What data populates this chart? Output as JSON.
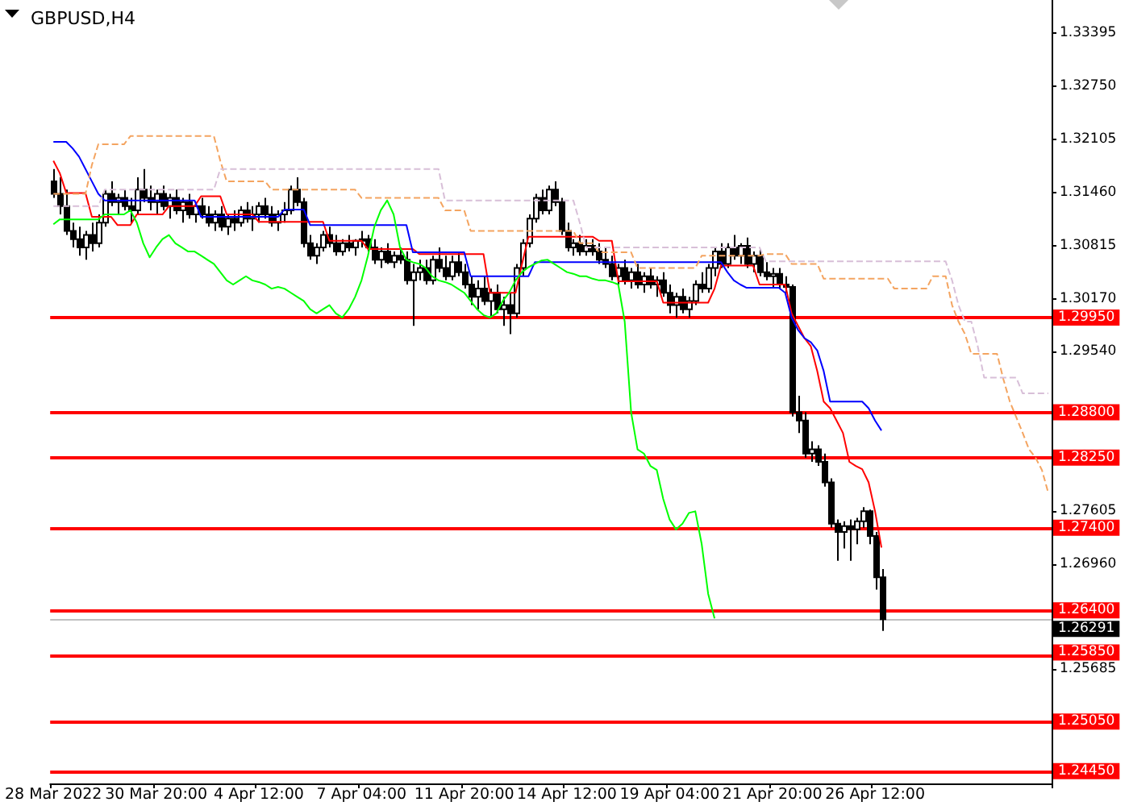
{
  "chart_data": {
    "type": "candlestick",
    "title": "GBPUSD,H4",
    "color": "#000000",
    "marker": "none",
    "categories": [
      "28 Mar 2022",
      null,
      null,
      null,
      null,
      null,
      null,
      null,
      null,
      null,
      null,
      null,
      null,
      null,
      null,
      null,
      "30 Mar 20:00",
      null,
      null,
      null,
      null,
      null,
      null,
      null,
      null,
      null,
      null,
      null,
      null,
      null,
      null,
      null,
      "4 Apr 12:00",
      null,
      null,
      null,
      null,
      null,
      null,
      null,
      null,
      null,
      null,
      null,
      null,
      null,
      null,
      null,
      "7 Apr 04:00",
      null,
      null,
      null,
      null,
      null,
      null,
      null,
      null,
      null,
      null,
      null,
      null,
      null,
      null,
      null,
      "11 Apr 20:00",
      null,
      null,
      null,
      null,
      null,
      null,
      null,
      null,
      null,
      null,
      null,
      null,
      null,
      null,
      null,
      "14 Apr 12:00",
      null,
      null,
      null,
      null,
      null,
      null,
      null,
      null,
      null,
      null,
      null,
      null,
      null,
      null,
      null,
      "19 Apr 04:00",
      null,
      null,
      null,
      null,
      null,
      null,
      null,
      null,
      null,
      null,
      null,
      null,
      null,
      null,
      null,
      "21 Apr 20:00",
      null,
      null,
      null,
      null,
      null,
      null,
      null,
      null,
      null,
      null,
      null,
      null,
      null,
      null,
      null,
      "26 Apr 12:00",
      null,
      null,
      null,
      null,
      null,
      null,
      null,
      null,
      null,
      null,
      null,
      null,
      null,
      null,
      null,
      null,
      null,
      null,
      null,
      null,
      null,
      null,
      null,
      null,
      null,
      null,
      null
    ],
    "ohlc": [
      [
        1.316,
        1.3175,
        1.314,
        1.3145
      ],
      [
        1.3145,
        1.3165,
        1.312,
        1.313
      ],
      [
        1.313,
        1.315,
        1.3095,
        1.31
      ],
      [
        1.31,
        1.311,
        1.308,
        1.309
      ],
      [
        1.309,
        1.3105,
        1.307,
        1.308
      ],
      [
        1.308,
        1.31,
        1.3065,
        1.3095
      ],
      [
        1.3095,
        1.311,
        1.3075,
        1.3085
      ],
      [
        1.3085,
        1.312,
        1.308,
        1.311
      ],
      [
        1.311,
        1.315,
        1.3105,
        1.3145
      ],
      [
        1.3145,
        1.316,
        1.313,
        1.3135
      ],
      [
        1.3135,
        1.3145,
        1.312,
        1.314
      ],
      [
        1.314,
        1.315,
        1.3125,
        1.313
      ],
      [
        1.313,
        1.314,
        1.311,
        1.3125
      ],
      [
        1.3125,
        1.3165,
        1.312,
        1.315
      ],
      [
        1.315,
        1.3175,
        1.3135,
        1.314
      ],
      [
        1.314,
        1.3155,
        1.3125,
        1.3135
      ],
      [
        1.3135,
        1.315,
        1.312,
        1.3145
      ],
      [
        1.3145,
        1.3155,
        1.3125,
        1.313
      ],
      [
        1.313,
        1.3145,
        1.3115,
        1.314
      ],
      [
        1.314,
        1.315,
        1.312,
        1.3125
      ],
      [
        1.3125,
        1.314,
        1.311,
        1.3135
      ],
      [
        1.3135,
        1.3145,
        1.3115,
        1.312
      ],
      [
        1.312,
        1.3135,
        1.311,
        1.313
      ],
      [
        1.313,
        1.314,
        1.3115,
        1.312
      ],
      [
        1.312,
        1.313,
        1.3105,
        1.311
      ],
      [
        1.311,
        1.3125,
        1.31,
        1.312
      ],
      [
        1.312,
        1.313,
        1.31,
        1.3105
      ],
      [
        1.3105,
        1.312,
        1.3095,
        1.3115
      ],
      [
        1.3115,
        1.3125,
        1.31,
        1.311
      ],
      [
        1.311,
        1.313,
        1.3105,
        1.3125
      ],
      [
        1.3125,
        1.3135,
        1.311,
        1.3115
      ],
      [
        1.3115,
        1.313,
        1.31,
        1.312
      ],
      [
        1.312,
        1.3135,
        1.311,
        1.313
      ],
      [
        1.313,
        1.314,
        1.3115,
        1.312
      ],
      [
        1.312,
        1.313,
        1.3105,
        1.311
      ],
      [
        1.311,
        1.3125,
        1.31,
        1.312
      ],
      [
        1.312,
        1.3135,
        1.311,
        1.3125
      ],
      [
        1.3125,
        1.3155,
        1.312,
        1.315
      ],
      [
        1.315,
        1.3165,
        1.313,
        1.3135
      ],
      [
        1.3135,
        1.314,
        1.308,
        1.3085
      ],
      [
        1.3085,
        1.3095,
        1.3065,
        1.307
      ],
      [
        1.307,
        1.3085,
        1.306,
        1.308
      ],
      [
        1.308,
        1.31,
        1.3075,
        1.3095
      ],
      [
        1.3095,
        1.3105,
        1.308,
        1.3085
      ],
      [
        1.3085,
        1.3095,
        1.307,
        1.3075
      ],
      [
        1.3075,
        1.309,
        1.307,
        1.3085
      ],
      [
        1.3085,
        1.3095,
        1.3075,
        1.308
      ],
      [
        1.308,
        1.309,
        1.307,
        1.3088
      ],
      [
        1.3088,
        1.31,
        1.308,
        1.309
      ],
      [
        1.309,
        1.3095,
        1.3075,
        1.308
      ],
      [
        1.308,
        1.309,
        1.306,
        1.3065
      ],
      [
        1.3065,
        1.308,
        1.3055,
        1.3075
      ],
      [
        1.3075,
        1.3085,
        1.306,
        1.3062
      ],
      [
        1.3062,
        1.3075,
        1.3055,
        1.307
      ],
      [
        1.307,
        1.308,
        1.306,
        1.3065
      ],
      [
        1.3065,
        1.3075,
        1.3035,
        1.304
      ],
      [
        1.304,
        1.306,
        1.2985,
        1.305
      ],
      [
        1.305,
        1.3065,
        1.304,
        1.3055
      ],
      [
        1.3055,
        1.3065,
        1.3035,
        1.304
      ],
      [
        1.304,
        1.307,
        1.3035,
        1.3065
      ],
      [
        1.3065,
        1.308,
        1.305,
        1.3055
      ],
      [
        1.3055,
        1.307,
        1.304,
        1.3045
      ],
      [
        1.3045,
        1.307,
        1.304,
        1.3062
      ],
      [
        1.3062,
        1.3075,
        1.3045,
        1.305
      ],
      [
        1.305,
        1.306,
        1.303,
        1.3035
      ],
      [
        1.3035,
        1.3045,
        1.301,
        1.302
      ],
      [
        1.302,
        1.304,
        1.3005,
        1.303
      ],
      [
        1.303,
        1.3045,
        1.301,
        1.3015
      ],
      [
        1.3015,
        1.303,
        1.2995,
        1.3025
      ],
      [
        1.3025,
        1.3035,
        1.3,
        1.3005
      ],
      [
        1.3005,
        1.302,
        1.2985,
        1.301
      ],
      [
        1.301,
        1.3025,
        1.2975,
        1.3
      ],
      [
        1.3,
        1.306,
        1.2995,
        1.3055
      ],
      [
        1.3055,
        1.309,
        1.3045,
        1.3085
      ],
      [
        1.3085,
        1.312,
        1.308,
        1.3115
      ],
      [
        1.3115,
        1.3145,
        1.311,
        1.314
      ],
      [
        1.314,
        1.315,
        1.312,
        1.3125
      ],
      [
        1.3125,
        1.3155,
        1.312,
        1.315
      ],
      [
        1.315,
        1.316,
        1.313,
        1.3135
      ],
      [
        1.3135,
        1.314,
        1.3095,
        1.31
      ],
      [
        1.31,
        1.311,
        1.3075,
        1.308
      ],
      [
        1.308,
        1.309,
        1.307,
        1.3085
      ],
      [
        1.3085,
        1.3095,
        1.307,
        1.3075
      ],
      [
        1.3075,
        1.309,
        1.307,
        1.3082
      ],
      [
        1.3082,
        1.309,
        1.307,
        1.3075
      ],
      [
        1.3075,
        1.3085,
        1.306,
        1.3065
      ],
      [
        1.3065,
        1.308,
        1.3055,
        1.306
      ],
      [
        1.306,
        1.307,
        1.304,
        1.3045
      ],
      [
        1.3045,
        1.306,
        1.3035,
        1.3055
      ],
      [
        1.3055,
        1.3065,
        1.3035,
        1.304
      ],
      [
        1.304,
        1.3055,
        1.303,
        1.305
      ],
      [
        1.305,
        1.306,
        1.303,
        1.3035
      ],
      [
        1.3035,
        1.305,
        1.3025,
        1.3045
      ],
      [
        1.3045,
        1.3055,
        1.303,
        1.3035
      ],
      [
        1.3035,
        1.3045,
        1.302,
        1.304
      ],
      [
        1.304,
        1.305,
        1.302,
        1.3025
      ],
      [
        1.3025,
        1.3035,
        1.3,
        1.301
      ],
      [
        1.301,
        1.3025,
        1.2995,
        1.302
      ],
      [
        1.302,
        1.303,
        1.3,
        1.3005
      ],
      [
        1.3005,
        1.302,
        1.2995,
        1.3015
      ],
      [
        1.3015,
        1.304,
        1.301,
        1.3035
      ],
      [
        1.3035,
        1.305,
        1.3025,
        1.303
      ],
      [
        1.303,
        1.306,
        1.3025,
        1.3055
      ],
      [
        1.3055,
        1.308,
        1.3045,
        1.3075
      ],
      [
        1.3075,
        1.3085,
        1.3055,
        1.306
      ],
      [
        1.306,
        1.3085,
        1.3055,
        1.308
      ],
      [
        1.308,
        1.3095,
        1.3065,
        1.307
      ],
      [
        1.307,
        1.3085,
        1.306,
        1.3082
      ],
      [
        1.3082,
        1.3092,
        1.3055,
        1.306
      ],
      [
        1.306,
        1.3075,
        1.305,
        1.307
      ],
      [
        1.307,
        1.3078,
        1.3045,
        1.305
      ],
      [
        1.305,
        1.3062,
        1.304,
        1.3045
      ],
      [
        1.3045,
        1.3055,
        1.303,
        1.3048
      ],
      [
        1.3048,
        1.3055,
        1.303,
        1.3035
      ],
      [
        1.3035,
        1.3045,
        1.3025,
        1.3032
      ],
      [
        1.3032,
        1.3035,
        1.2875,
        1.288
      ],
      [
        1.288,
        1.29,
        1.2855,
        1.287
      ],
      [
        1.287,
        1.288,
        1.2825,
        1.283
      ],
      [
        1.283,
        1.2845,
        1.282,
        1.2835
      ],
      [
        1.2835,
        1.284,
        1.2815,
        1.282
      ],
      [
        1.282,
        1.283,
        1.279,
        1.2795
      ],
      [
        1.2795,
        1.28,
        1.274,
        1.2745
      ],
      [
        1.2745,
        1.275,
        1.27,
        1.2735
      ],
      [
        1.2735,
        1.2748,
        1.2715,
        1.2742
      ],
      [
        1.2742,
        1.275,
        1.27,
        1.2738
      ],
      [
        1.2738,
        1.2752,
        1.272,
        1.2748
      ],
      [
        1.2748,
        1.2765,
        1.274,
        1.276
      ],
      [
        1.276,
        1.2762,
        1.272,
        1.273
      ],
      [
        1.273,
        1.2735,
        1.2665,
        1.268
      ],
      [
        1.268,
        1.269,
        1.2615,
        1.26291
      ],
      null,
      null,
      null,
      null,
      null,
      null,
      null,
      null,
      null,
      null,
      null,
      null,
      null,
      null,
      null,
      null,
      null,
      null,
      null,
      null,
      null,
      null,
      null,
      null,
      null,
      null
    ],
    "series": [
      {
        "type": "line",
        "color": "#ff0000",
        "line_style": "solid",
        "values": [
          1.3185,
          1.317,
          1.3146,
          1.3146,
          1.3146,
          1.3146,
          1.3117,
          1.3117,
          1.3117,
          1.3117,
          1.3107,
          1.3107,
          1.3107,
          1.312,
          1.312,
          1.312,
          1.312,
          1.312,
          1.313,
          1.313,
          1.313,
          1.313,
          1.313,
          1.3142,
          1.3142,
          1.3142,
          1.3142,
          1.312,
          1.312,
          1.312,
          1.312,
          1.312,
          1.3111,
          1.3111,
          1.3111,
          1.3111,
          1.3111,
          1.3111,
          1.3111,
          1.3111,
          1.3111,
          1.3111,
          1.3111,
          1.3088,
          1.3088,
          1.3088,
          1.3088,
          1.3088,
          1.3088,
          1.3078,
          1.3078,
          1.3078,
          1.3078,
          1.3078,
          1.3078,
          1.3078,
          1.3078,
          1.3072,
          1.3072,
          1.3072,
          1.3072,
          1.3072,
          1.3072,
          1.3072,
          1.3072,
          1.3072,
          1.3072,
          1.3072,
          1.3025,
          1.3025,
          1.3025,
          1.3025,
          1.3025,
          1.306,
          1.3093,
          1.3093,
          1.3093,
          1.3093,
          1.3093,
          1.3093,
          1.3093,
          1.3093,
          1.3093,
          1.3093,
          1.3093,
          1.3088,
          1.3088,
          1.3088,
          1.3039,
          1.3039,
          1.3039,
          1.3039,
          1.3039,
          1.3039,
          1.3039,
          1.3013,
          1.3013,
          1.3013,
          1.3013,
          1.3013,
          1.3013,
          1.3013,
          1.3013,
          1.303,
          1.3058,
          1.3058,
          1.3058,
          1.3058,
          1.3058,
          1.3058,
          1.3035,
          1.3035,
          1.3035,
          1.3035,
          1.3035,
          1.3,
          1.2985,
          1.297,
          1.296,
          1.293,
          1.2893,
          1.2885,
          1.287,
          1.2855,
          1.282,
          1.2815,
          1.2811,
          1.2795,
          1.276,
          1.2716,
          null,
          null,
          null,
          null,
          null,
          null,
          null,
          null,
          null,
          null,
          null,
          null,
          null,
          null,
          null,
          null,
          null,
          null,
          null,
          null,
          null,
          null,
          null,
          null,
          null,
          null
        ]
      },
      {
        "type": "line",
        "color": "#0000ff",
        "line_style": "solid",
        "values": [
          1.3208,
          1.3208,
          1.3208,
          1.32,
          1.319,
          1.3175,
          1.316,
          1.3145,
          1.3137,
          1.3137,
          1.3137,
          1.3137,
          1.3137,
          1.3137,
          1.3137,
          1.3137,
          1.3137,
          1.3137,
          1.3137,
          1.3137,
          1.3137,
          1.3137,
          1.3137,
          1.3117,
          1.3117,
          1.3117,
          1.3117,
          1.3117,
          1.3117,
          1.3117,
          1.3117,
          1.3117,
          1.3117,
          1.3117,
          1.3117,
          1.3117,
          1.3126,
          1.3126,
          1.3126,
          1.3126,
          1.3107,
          1.3107,
          1.3107,
          1.3107,
          1.3107,
          1.3107,
          1.3107,
          1.3107,
          1.3107,
          1.3107,
          1.3107,
          1.3107,
          1.3107,
          1.3107,
          1.3107,
          1.3107,
          1.3074,
          1.3074,
          1.3074,
          1.3074,
          1.3074,
          1.3074,
          1.3074,
          1.3074,
          1.3074,
          1.3045,
          1.3045,
          1.3045,
          1.3045,
          1.3045,
          1.3045,
          1.3045,
          1.3045,
          1.3045,
          1.3045,
          1.3062,
          1.3062,
          1.3062,
          1.3062,
          1.3062,
          1.3062,
          1.3062,
          1.3062,
          1.3062,
          1.3062,
          1.3062,
          1.3062,
          1.3062,
          1.3062,
          1.3062,
          1.3062,
          1.3062,
          1.3062,
          1.3062,
          1.3062,
          1.3062,
          1.3062,
          1.3062,
          1.3062,
          1.3062,
          1.3062,
          1.3062,
          1.3062,
          1.3062,
          1.3062,
          1.305,
          1.304,
          1.3035,
          1.3031,
          1.3031,
          1.3031,
          1.3031,
          1.3031,
          1.3031,
          1.3025,
          1.2995,
          1.298,
          1.297,
          1.2965,
          1.2955,
          1.293,
          1.2893,
          1.2893,
          1.2893,
          1.2893,
          1.2893,
          1.2893,
          1.2885,
          1.287,
          1.2858,
          null,
          null,
          null,
          null,
          null,
          null,
          null,
          null,
          null,
          null,
          null,
          null,
          null,
          null,
          null,
          null,
          null,
          null,
          null,
          null,
          null,
          null,
          null,
          null,
          null,
          null
        ]
      },
      {
        "type": "line",
        "color": "#00ff00",
        "line_style": "solid",
        "values": [
          1.3108,
          1.3114,
          1.3114,
          1.3114,
          1.3114,
          1.3114,
          1.3114,
          1.3114,
          1.312,
          1.312,
          1.312,
          1.312,
          1.3125,
          1.311,
          1.3085,
          1.3068,
          1.308,
          1.309,
          1.3095,
          1.3085,
          1.308,
          1.3075,
          1.3075,
          1.307,
          1.3065,
          1.306,
          1.305,
          1.304,
          1.3035,
          1.304,
          1.3045,
          1.304,
          1.3038,
          1.3035,
          1.303,
          1.3032,
          1.303,
          1.3025,
          1.302,
          1.3015,
          1.3005,
          1.3,
          1.3005,
          1.301,
          1.3,
          1.2995,
          1.3005,
          1.302,
          1.304,
          1.307,
          1.3105,
          1.3125,
          1.3137,
          1.312,
          1.308,
          1.3065,
          1.3062,
          1.306,
          1.3055,
          1.3045,
          1.304,
          1.3038,
          1.3035,
          1.303,
          1.3025,
          1.3015,
          1.3005,
          1.2998,
          1.2995,
          1.3,
          1.3015,
          1.3025,
          1.304,
          1.305,
          1.3056,
          1.306,
          1.3064,
          1.3065,
          1.306,
          1.3055,
          1.305,
          1.3048,
          1.3045,
          1.3045,
          1.3042,
          1.304,
          1.304,
          1.3038,
          1.3035,
          1.299,
          1.288,
          1.2835,
          1.283,
          1.2815,
          1.281,
          1.2775,
          1.275,
          1.2738,
          1.2745,
          1.2758,
          1.276,
          1.272,
          1.266,
          1.263,
          null,
          null,
          null,
          null,
          null,
          null,
          null,
          null,
          null,
          null,
          null,
          null,
          null,
          null,
          null,
          null,
          null,
          null,
          null,
          null,
          null,
          null,
          null,
          null,
          null,
          null,
          null,
          null,
          null,
          null,
          null,
          null,
          null,
          null,
          null,
          null,
          null,
          null,
          null,
          null,
          null,
          null,
          null,
          null,
          null,
          null,
          null,
          null,
          null,
          null,
          null,
          null
        ]
      },
      {
        "type": "line",
        "color": "#f4a460",
        "line_style": "dashed",
        "values": [
          1.3145,
          1.3145,
          1.3145,
          1.3145,
          1.3145,
          1.3145,
          1.318,
          1.3205,
          1.3205,
          1.3205,
          1.3205,
          1.3205,
          1.3215,
          1.3215,
          1.3215,
          1.3215,
          1.3215,
          1.3215,
          1.3215,
          1.3215,
          1.3215,
          1.3215,
          1.3215,
          1.3215,
          1.3215,
          1.3215,
          1.3185,
          1.316,
          1.316,
          1.316,
          1.316,
          1.316,
          1.316,
          1.316,
          1.315,
          1.315,
          1.315,
          1.315,
          1.315,
          1.315,
          1.315,
          1.315,
          1.315,
          1.315,
          1.315,
          1.315,
          1.315,
          1.315,
          1.314,
          1.314,
          1.314,
          1.314,
          1.314,
          1.314,
          1.314,
          1.314,
          1.314,
          1.314,
          1.314,
          1.314,
          1.314,
          1.3125,
          1.3125,
          1.3125,
          1.3125,
          1.31,
          1.31,
          1.31,
          1.31,
          1.31,
          1.31,
          1.31,
          1.31,
          1.31,
          1.31,
          1.31,
          1.31,
          1.31,
          1.31,
          1.31,
          1.31,
          1.31,
          1.3085,
          1.3085,
          1.3085,
          1.3074,
          1.3074,
          1.3074,
          1.3074,
          1.3074,
          1.3074,
          1.3055,
          1.3055,
          1.3055,
          1.3055,
          1.3055,
          1.3055,
          1.3055,
          1.3055,
          1.3055,
          1.3055,
          1.307,
          1.307,
          1.307,
          1.307,
          1.307,
          1.307,
          1.307,
          1.307,
          1.307,
          1.307,
          1.3072,
          1.3072,
          1.3072,
          1.3072,
          1.306,
          1.306,
          1.306,
          1.306,
          1.306,
          1.3042,
          1.3042,
          1.3042,
          1.3042,
          1.3042,
          1.3042,
          1.3042,
          1.3042,
          1.3042,
          1.3042,
          1.3042,
          1.303,
          1.303,
          1.303,
          1.303,
          1.303,
          1.303,
          1.3045,
          1.3045,
          1.3045,
          1.301,
          1.299,
          1.2975,
          1.2951,
          1.2951,
          1.2951,
          1.2951,
          1.2951,
          1.292,
          1.2893,
          1.2874,
          1.2855,
          1.2835,
          1.2825,
          1.281,
          1.2782
        ]
      },
      {
        "type": "line",
        "color": "#d8bfd8",
        "line_style": "dashed",
        "values": [
          1.313,
          1.313,
          1.313,
          1.313,
          1.313,
          1.313,
          1.313,
          1.313,
          1.315,
          1.315,
          1.315,
          1.315,
          1.315,
          1.315,
          1.315,
          1.315,
          1.315,
          1.315,
          1.315,
          1.315,
          1.315,
          1.315,
          1.315,
          1.315,
          1.315,
          1.315,
          1.3175,
          1.3175,
          1.3175,
          1.3175,
          1.3175,
          1.3175,
          1.3175,
          1.3175,
          1.3175,
          1.3175,
          1.3175,
          1.3175,
          1.3175,
          1.3175,
          1.3175,
          1.3175,
          1.3175,
          1.3175,
          1.3175,
          1.3175,
          1.3175,
          1.3175,
          1.3175,
          1.3175,
          1.3175,
          1.3175,
          1.3175,
          1.3175,
          1.3175,
          1.3175,
          1.3175,
          1.3175,
          1.3175,
          1.3175,
          1.3175,
          1.3137,
          1.3137,
          1.3137,
          1.3137,
          1.3137,
          1.3137,
          1.3137,
          1.3137,
          1.3137,
          1.3137,
          1.3137,
          1.3137,
          1.3137,
          1.3137,
          1.3137,
          1.3137,
          1.3137,
          1.3137,
          1.3137,
          1.3137,
          1.3137,
          1.311,
          1.308,
          1.308,
          1.308,
          1.308,
          1.308,
          1.308,
          1.308,
          1.308,
          1.308,
          1.308,
          1.308,
          1.308,
          1.308,
          1.308,
          1.308,
          1.308,
          1.308,
          1.308,
          1.308,
          1.308,
          1.308,
          1.308,
          1.308,
          1.308,
          1.308,
          1.308,
          1.308,
          1.308,
          1.3063,
          1.3063,
          1.3063,
          1.3063,
          1.3063,
          1.3063,
          1.3063,
          1.3063,
          1.3063,
          1.3063,
          1.3063,
          1.3063,
          1.3063,
          1.3063,
          1.3063,
          1.3063,
          1.3063,
          1.3063,
          1.3063,
          1.3063,
          1.3063,
          1.3063,
          1.3063,
          1.3063,
          1.3063,
          1.3063,
          1.3063,
          1.3063,
          1.3063,
          1.304,
          1.301,
          1.299,
          1.299,
          1.296,
          1.2922,
          1.2922,
          1.2922,
          1.2922,
          1.2922,
          1.2922,
          1.2903,
          1.2903,
          1.2903,
          1.2903,
          1.2903
        ]
      }
    ],
    "ylim": [
      1.243,
      1.338
    ],
    "yticks": [
      {
        "value": 1.33395,
        "label": "1.33395"
      },
      {
        "value": 1.3275,
        "label": "1.32750"
      },
      {
        "value": 1.32105,
        "label": "1.32105"
      },
      {
        "value": 1.3146,
        "label": "1.31460"
      },
      {
        "value": 1.30815,
        "label": "1.30815"
      },
      {
        "value": 1.3017,
        "label": "1.30170"
      },
      {
        "value": 1.2954,
        "label": "1.29540"
      },
      {
        "value": 1.27605,
        "label": "1.27605"
      },
      {
        "value": 1.2696,
        "label": "1.26960"
      },
      {
        "value": 1.25685,
        "label": "1.25685"
      }
    ],
    "ref_lines": [
      {
        "axis": "y",
        "value": 1.2995,
        "label": "1.29950",
        "color": "#ff0000",
        "line_style": "solid"
      },
      {
        "axis": "y",
        "value": 1.288,
        "label": "1.28800",
        "color": "#ff0000",
        "line_style": "solid"
      },
      {
        "axis": "y",
        "value": 1.2825,
        "label": "1.28250",
        "color": "#ff0000",
        "line_style": "solid"
      },
      {
        "axis": "y",
        "value": 1.274,
        "label": "1.27400",
        "color": "#ff0000",
        "line_style": "solid"
      },
      {
        "axis": "y",
        "value": 1.264,
        "label": "1.26400",
        "color": "#ff0000",
        "line_style": "solid"
      },
      {
        "axis": "y",
        "value": 1.2585,
        "label": "1.25850",
        "color": "#ff0000",
        "line_style": "solid"
      },
      {
        "axis": "y",
        "value": 1.2505,
        "label": "1.25050",
        "color": "#ff0000",
        "line_style": "solid"
      },
      {
        "axis": "y",
        "value": 1.2445,
        "label": "1.24450",
        "color": "#ff0000",
        "line_style": "solid"
      },
      {
        "axis": "y",
        "value": 1.26291,
        "label": "1.26291",
        "color": "#c0c0c0",
        "line_style": "solid"
      }
    ]
  }
}
